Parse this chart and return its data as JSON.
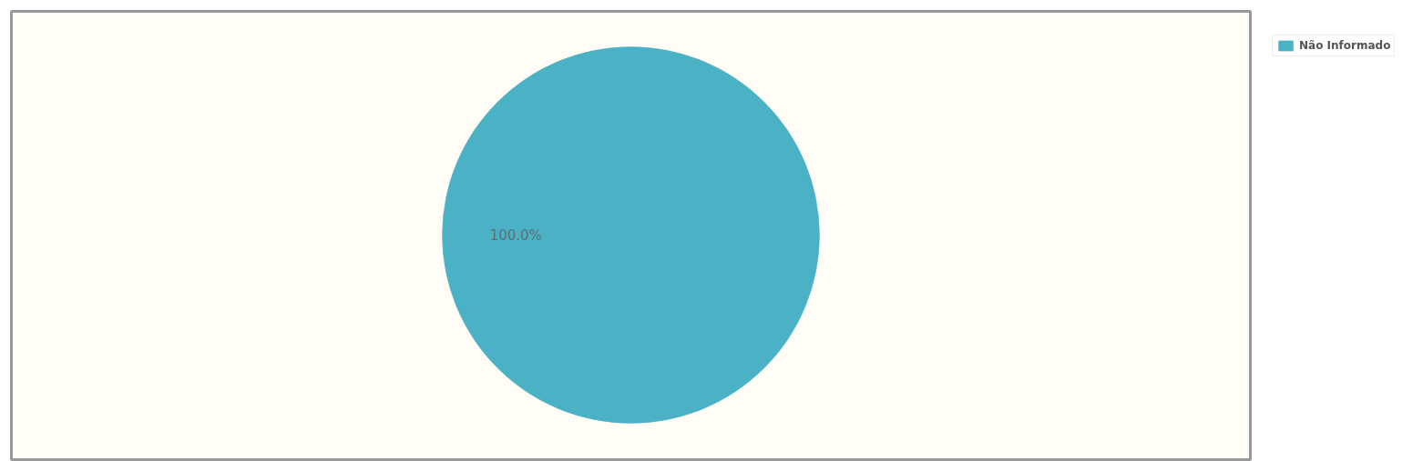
{
  "chart_data": {
    "type": "pie",
    "categories": [
      "Não Informado"
    ],
    "values": [
      100
    ],
    "colors": [
      "#4bb2c5"
    ],
    "value_labels": [
      "100.0%"
    ],
    "legend": "top right"
  }
}
